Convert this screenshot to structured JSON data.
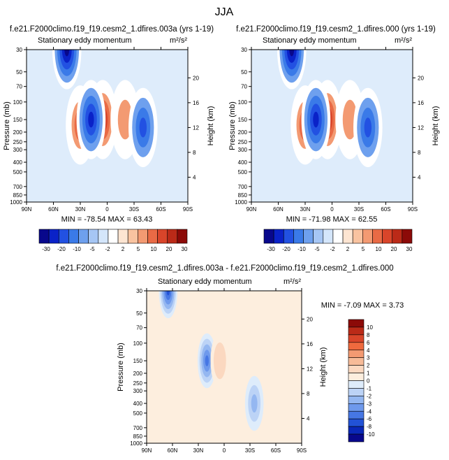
{
  "figure": {
    "title": "JJA"
  },
  "ticks": {
    "lat": [
      "90N",
      "60N",
      "30N",
      "0",
      "30S",
      "60S",
      "90S"
    ],
    "pressure": [
      "30",
      "50",
      "70",
      "100",
      "150",
      "200",
      "250",
      "300",
      "400",
      "500",
      "700",
      "850",
      "1000"
    ],
    "height": [
      "20",
      "16",
      "12",
      "8",
      "4"
    ]
  },
  "panels": [
    {
      "case_title": "f.e21.F2000climo.f19_f19.cesm2_1.dfires.003a (yrs 1-19)",
      "variable": "Stationary eddy momentum",
      "units": "m²/s²",
      "ylabel": "Pressure (mb)",
      "ylabel_right": "Height (km)",
      "stats": "MIN = -78.54   MAX =  63.43",
      "colorbar_labels": [
        "-30",
        "-20",
        "-10",
        "-5",
        "-2",
        "2",
        "5",
        "10",
        "20",
        "30"
      ]
    },
    {
      "case_title": "f.e21.F2000climo.f19_f19.cesm2_1.dfires.000 (yrs 1-19)",
      "variable": "Stationary eddy momentum",
      "units": "m²/s²",
      "ylabel": "Pressure (mb)",
      "ylabel_right": "Height (km)",
      "stats": "MIN = -71.98   MAX =  62.55",
      "colorbar_labels": [
        "-30",
        "-20",
        "-10",
        "-5",
        "-2",
        "2",
        "5",
        "10",
        "20",
        "30"
      ]
    },
    {
      "case_title": "f.e21.F2000climo.f19_f19.cesm2_1.dfires.003a - f.e21.F2000climo.f19_f19.cesm2_1.dfires.000",
      "variable": "Stationary eddy momentum",
      "units": "m²/s²",
      "ylabel": "Pressure (mb)",
      "ylabel_right": "Height (km)",
      "stats": "MIN = -7.09  MAX =  3.73",
      "colorbar_labels": [
        "10",
        "8",
        "6",
        "4",
        "3",
        "2",
        "1",
        "0",
        "-1",
        "-2",
        "-3",
        "-4",
        "-6",
        "-8",
        "-10"
      ]
    }
  ],
  "colors": {
    "diverging_blue_red": [
      "#08088c",
      "#0a22c8",
      "#2251e2",
      "#3a7ae8",
      "#6ea0ee",
      "#a6c6f4",
      "#d4e6fb",
      "#ffffff",
      "#fde5d2",
      "#f9c3a0",
      "#f39a72",
      "#e96a45",
      "#d9452a",
      "#bb2a18",
      "#8c0a08"
    ],
    "diff_scale_top_to_bottom": [
      "#8c0a08",
      "#bb2a18",
      "#d9452a",
      "#ef6a3e",
      "#f39a72",
      "#f7bb98",
      "#fbd8c0",
      "#fdeede",
      "#deecfb",
      "#bcd3f6",
      "#94b7f1",
      "#6e99ec",
      "#4677e4",
      "#2252d6",
      "#0a28b8",
      "#08088c"
    ]
  },
  "chart_data": [
    {
      "type": "heatmap",
      "title": "f.e21.F2000climo.f19_f19.cesm2_1.dfires.003a (yrs 1-19)",
      "subtitle": "Stationary eddy momentum",
      "units": "m²/s²",
      "x_ticks": [
        "90N",
        "60N",
        "30N",
        "0",
        "30S",
        "60S",
        "90S"
      ],
      "y_ticks": [
        30,
        50,
        70,
        100,
        150,
        200,
        250,
        300,
        400,
        500,
        700,
        850,
        1000
      ],
      "ylabel": "Pressure (mb)",
      "ylabel_right": "Height (km)",
      "y_right_ticks": [
        20,
        16,
        12,
        8,
        4
      ],
      "y_scale": "log",
      "levels": [
        -30,
        -20,
        -10,
        -5,
        -2,
        2,
        5,
        10,
        20,
        30
      ],
      "min": -78.54,
      "max": 63.43,
      "features": [
        {
          "lat": 5,
          "p": 150,
          "peak": 63,
          "desc": "positive maximum"
        },
        {
          "lat": 45,
          "p": 30,
          "peak": -78,
          "desc": "negative minimum"
        },
        {
          "lat": 30,
          "p": 170,
          "peak": 20
        },
        {
          "lat": 18,
          "p": 150,
          "peak": -20
        },
        {
          "lat": -20,
          "p": 150,
          "peak": 10
        },
        {
          "lat": -40,
          "p": 180,
          "peak": -10
        }
      ]
    },
    {
      "type": "heatmap",
      "title": "f.e21.F2000climo.f19_f19.cesm2_1.dfires.000 (yrs 1-19)",
      "subtitle": "Stationary eddy momentum",
      "units": "m²/s²",
      "x_ticks": [
        "90N",
        "60N",
        "30N",
        "0",
        "30S",
        "60S",
        "90S"
      ],
      "y_ticks": [
        30,
        50,
        70,
        100,
        150,
        200,
        250,
        300,
        400,
        500,
        700,
        850,
        1000
      ],
      "ylabel": "Pressure (mb)",
      "ylabel_right": "Height (km)",
      "y_right_ticks": [
        20,
        16,
        12,
        8,
        4
      ],
      "y_scale": "log",
      "levels": [
        -30,
        -20,
        -10,
        -5,
        -2,
        2,
        5,
        10,
        20,
        30
      ],
      "min": -71.98,
      "max": 62.55,
      "features": [
        {
          "lat": 5,
          "p": 150,
          "peak": 62,
          "desc": "positive maximum"
        },
        {
          "lat": 45,
          "p": 30,
          "peak": -72,
          "desc": "negative minimum"
        },
        {
          "lat": 30,
          "p": 170,
          "peak": 20
        },
        {
          "lat": 18,
          "p": 150,
          "peak": -20
        },
        {
          "lat": -20,
          "p": 150,
          "peak": 10
        },
        {
          "lat": -40,
          "p": 180,
          "peak": -10
        }
      ]
    },
    {
      "type": "heatmap",
      "title": "f.e21.F2000climo.f19_f19.cesm2_1.dfires.003a - f.e21.F2000climo.f19_f19.cesm2_1.dfires.000",
      "subtitle": "Stationary eddy momentum",
      "units": "m²/s²",
      "x_ticks": [
        "90N",
        "60N",
        "30N",
        "0",
        "30S",
        "60S",
        "90S"
      ],
      "y_ticks": [
        30,
        50,
        70,
        100,
        150,
        200,
        250,
        300,
        400,
        500,
        700,
        850,
        1000
      ],
      "ylabel": "Pressure (mb)",
      "ylabel_right": "Height (km)",
      "y_right_ticks": [
        20,
        16,
        12,
        8,
        4
      ],
      "y_scale": "log",
      "levels": [
        -10,
        -8,
        -6,
        -4,
        -3,
        -2,
        -1,
        0,
        1,
        2,
        3,
        4,
        6,
        8,
        10
      ],
      "min": -7.09,
      "max": 3.73,
      "features": [
        {
          "lat": 20,
          "p": 150,
          "peak": -4
        },
        {
          "lat": 65,
          "p": 30,
          "peak": -7
        },
        {
          "lat": -35,
          "p": 400,
          "peak": -2
        },
        {
          "lat": 5,
          "p": 150,
          "peak": 2
        }
      ]
    }
  ]
}
